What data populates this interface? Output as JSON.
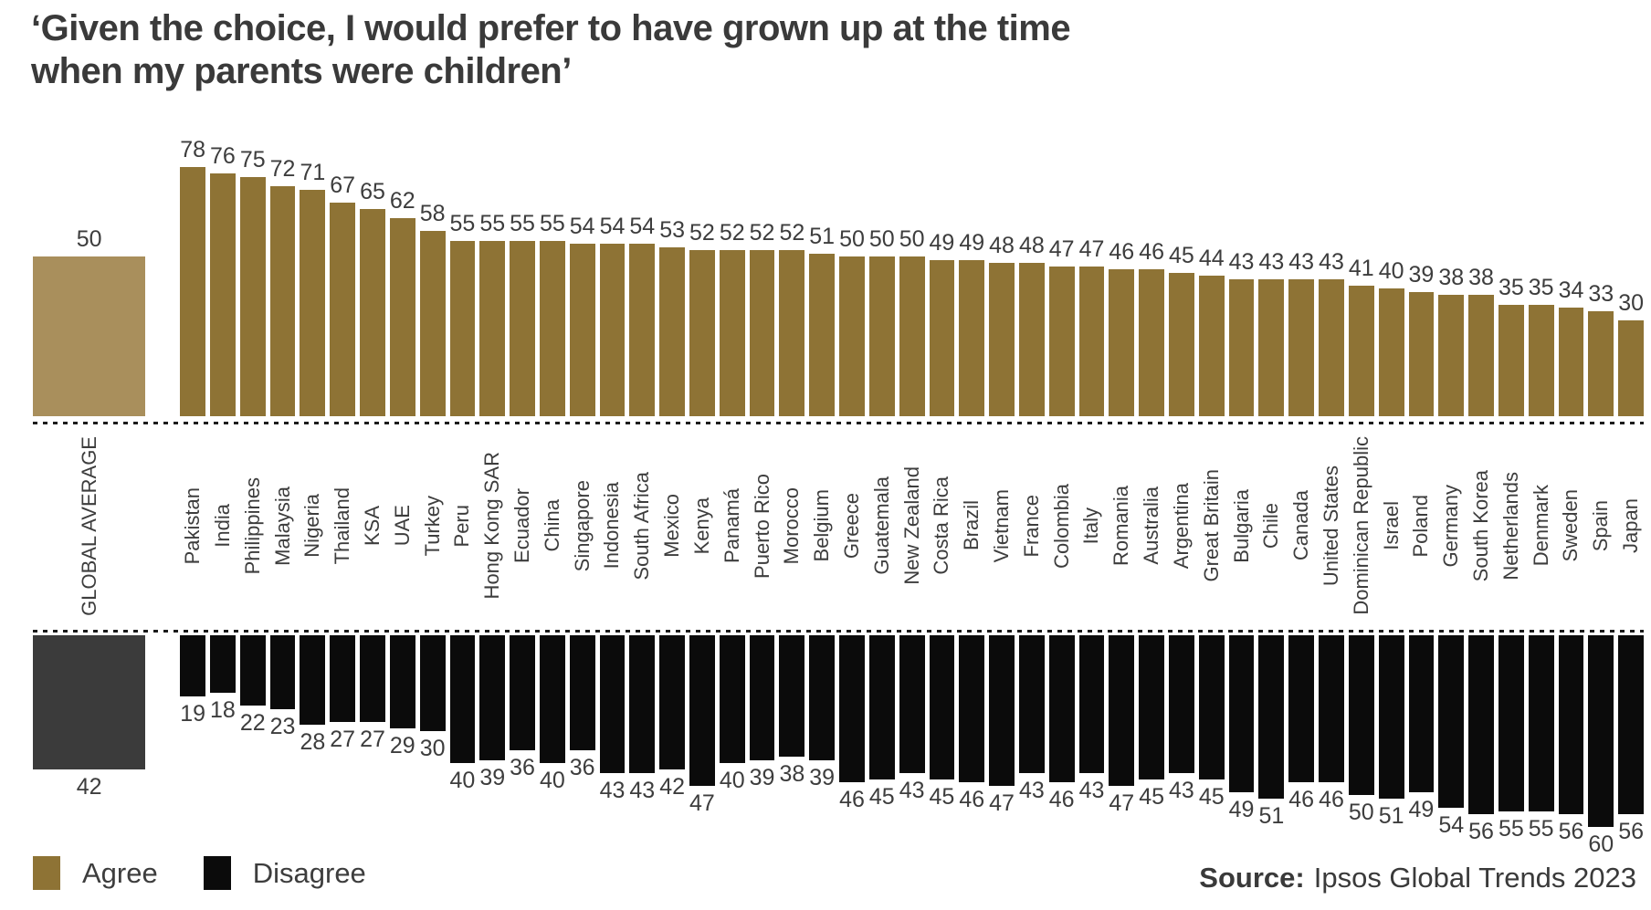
{
  "title": {
    "line1": "‘Given the choice, I would prefer to have grown up at the time",
    "line2": "when my parents were children’"
  },
  "source": {
    "label": "Source:",
    "text": "Ipsos Global Trends 2023"
  },
  "chart_data": {
    "type": "bar",
    "title": "‘Given the choice, I would prefer to have grown up at the time when my parents were children’",
    "orientation": "diverging-vertical",
    "legend": [
      "Agree",
      "Disagree"
    ],
    "legend_position": "bottom-left",
    "value_range": [
      0,
      100
    ],
    "categories": [
      "Pakistan",
      "India",
      "Philippines",
      "Malaysia",
      "Nigeria",
      "Thailand",
      "KSA",
      "UAE",
      "Turkey",
      "Peru",
      "Hong Kong SAR",
      "Ecuador",
      "China",
      "Singapore",
      "Indonesia",
      "South Africa",
      "Mexico",
      "Kenya",
      "Panamá",
      "Puerto Rico",
      "Morocco",
      "Belgium",
      "Greece",
      "Guatemala",
      "New Zealand",
      "Costa Rica",
      "Brazil",
      "Vietnam",
      "France",
      "Colombia",
      "Italy",
      "Romania",
      "Australia",
      "Argentina",
      "Great Britain",
      "Bulgaria",
      "Chile",
      "Canada",
      "United States",
      "Dominican Republic",
      "Israel",
      "Poland",
      "Germany",
      "South Korea",
      "Netherlands",
      "Denmark",
      "Sweden",
      "Spain",
      "Japan"
    ],
    "series": [
      {
        "name": "Agree",
        "values": [
          78,
          76,
          75,
          72,
          71,
          67,
          65,
          62,
          58,
          55,
          55,
          55,
          55,
          54,
          54,
          54,
          53,
          52,
          52,
          52,
          52,
          51,
          50,
          50,
          50,
          49,
          49,
          48,
          48,
          47,
          47,
          46,
          46,
          45,
          44,
          43,
          43,
          43,
          43,
          41,
          40,
          39,
          38,
          38,
          35,
          35,
          34,
          33,
          30
        ]
      },
      {
        "name": "Disagree",
        "values": [
          19,
          18,
          22,
          23,
          28,
          27,
          27,
          29,
          30,
          40,
          39,
          36,
          40,
          36,
          43,
          43,
          42,
          47,
          40,
          39,
          38,
          39,
          46,
          45,
          43,
          45,
          46,
          47,
          43,
          46,
          43,
          47,
          45,
          43,
          45,
          49,
          51,
          46,
          46,
          50,
          51,
          49,
          54,
          56,
          55,
          55,
          56,
          60,
          56
        ]
      }
    ],
    "global_average": {
      "label": "GLOBAL AVERAGE",
      "agree": 50,
      "disagree": 42
    },
    "colors": {
      "agree": "#8e7335",
      "disagree": "#0b0b0b",
      "global_agree": "#a98f5c",
      "global_disagree": "#3b3b3b"
    }
  }
}
